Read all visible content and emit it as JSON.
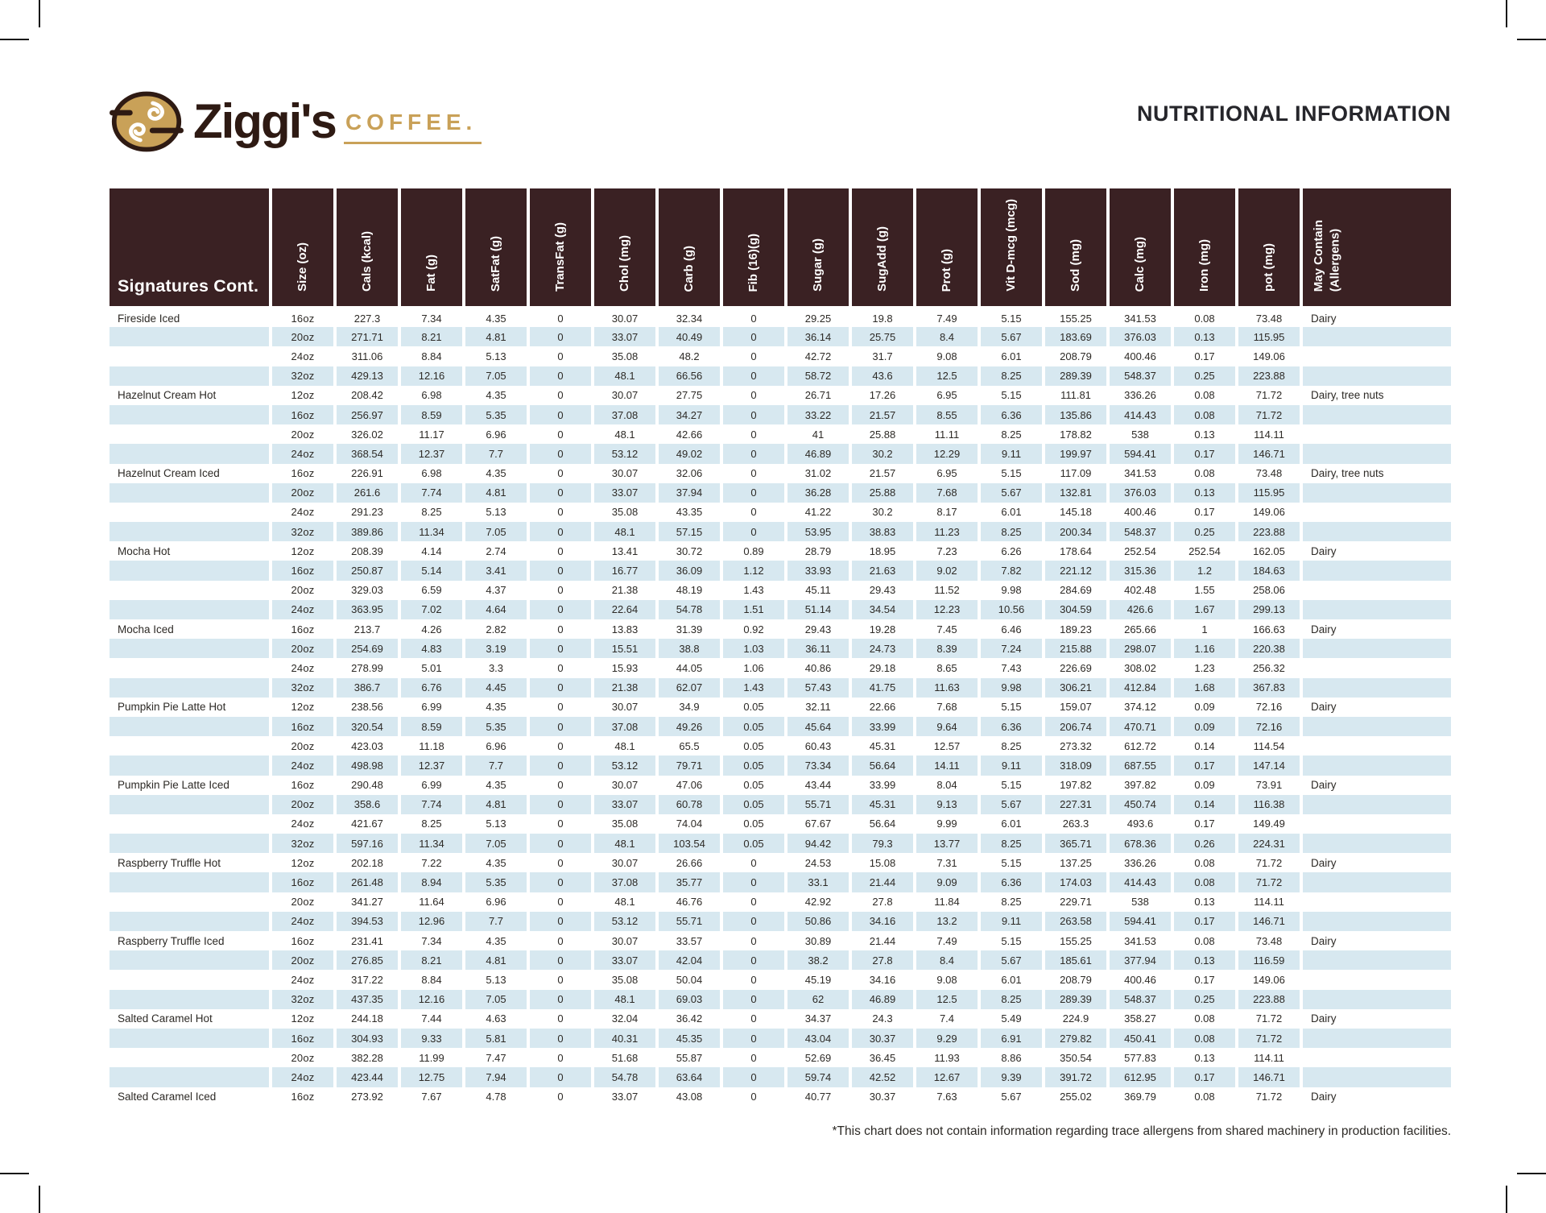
{
  "page": {
    "title": "NUTRITIONAL INFORMATION",
    "footnote": "*This chart does not contain information regarding trace allergens from shared machinery in production facilities."
  },
  "brand": {
    "name": "Ziggi's",
    "word2": "COFFEE.",
    "gold": "#c9a158",
    "brown": "#2e1a13"
  },
  "table": {
    "corner_header": "Signatures Cont.",
    "header_bg": "#3a2123",
    "stripe_color": "#d7e8f0",
    "columns": [
      "Size (oz)",
      "Cals (kcal)",
      "Fat (g)",
      "SatFat (g)",
      "TransFat (g)",
      "Chol (mg)",
      "Carb (g)",
      "Fib (16)(g)",
      "Sugar (g)",
      "SugAdd (g)",
      "Prot (g)",
      "Vit D-mcg (mcg)",
      "Sod (mg)",
      "Calc (mg)",
      "Iron (mg)",
      "pot (mg)"
    ],
    "allergen_header": "May Contain\n(Allergens)",
    "rows": [
      {
        "name": "Fireside Iced",
        "size": "16oz",
        "values": [
          "227.3",
          "7.34",
          "4.35",
          "0",
          "30.07",
          "32.34",
          "0",
          "29.25",
          "19.8",
          "7.49",
          "5.15",
          "155.25",
          "341.53",
          "0.08",
          "73.48"
        ],
        "allergens": "Dairy"
      },
      {
        "name": "",
        "size": "20oz",
        "values": [
          "271.71",
          "8.21",
          "4.81",
          "0",
          "33.07",
          "40.49",
          "0",
          "36.14",
          "25.75",
          "8.4",
          "5.67",
          "183.69",
          "376.03",
          "0.13",
          "115.95"
        ],
        "allergens": ""
      },
      {
        "name": "",
        "size": "24oz",
        "values": [
          "311.06",
          "8.84",
          "5.13",
          "0",
          "35.08",
          "48.2",
          "0",
          "42.72",
          "31.7",
          "9.08",
          "6.01",
          "208.79",
          "400.46",
          "0.17",
          "149.06"
        ],
        "allergens": ""
      },
      {
        "name": "",
        "size": "32oz",
        "values": [
          "429.13",
          "12.16",
          "7.05",
          "0",
          "48.1",
          "66.56",
          "0",
          "58.72",
          "43.6",
          "12.5",
          "8.25",
          "289.39",
          "548.37",
          "0.25",
          "223.88"
        ],
        "allergens": ""
      },
      {
        "name": "Hazelnut Cream Hot",
        "size": "12oz",
        "values": [
          "208.42",
          "6.98",
          "4.35",
          "0",
          "30.07",
          "27.75",
          "0",
          "26.71",
          "17.26",
          "6.95",
          "5.15",
          "111.81",
          "336.26",
          "0.08",
          "71.72"
        ],
        "allergens": "Dairy, tree nuts"
      },
      {
        "name": "",
        "size": "16oz",
        "values": [
          "256.97",
          "8.59",
          "5.35",
          "0",
          "37.08",
          "34.27",
          "0",
          "33.22",
          "21.57",
          "8.55",
          "6.36",
          "135.86",
          "414.43",
          "0.08",
          "71.72"
        ],
        "allergens": ""
      },
      {
        "name": "",
        "size": "20oz",
        "values": [
          "326.02",
          "11.17",
          "6.96",
          "0",
          "48.1",
          "42.66",
          "0",
          "41",
          "25.88",
          "11.11",
          "8.25",
          "178.82",
          "538",
          "0.13",
          "114.11"
        ],
        "allergens": ""
      },
      {
        "name": "",
        "size": "24oz",
        "values": [
          "368.54",
          "12.37",
          "7.7",
          "0",
          "53.12",
          "49.02",
          "0",
          "46.89",
          "30.2",
          "12.29",
          "9.11",
          "199.97",
          "594.41",
          "0.17",
          "146.71"
        ],
        "allergens": ""
      },
      {
        "name": "Hazelnut Cream Iced",
        "size": "16oz",
        "values": [
          "226.91",
          "6.98",
          "4.35",
          "0",
          "30.07",
          "32.06",
          "0",
          "31.02",
          "21.57",
          "6.95",
          "5.15",
          "117.09",
          "341.53",
          "0.08",
          "73.48"
        ],
        "allergens": "Dairy, tree nuts"
      },
      {
        "name": "",
        "size": "20oz",
        "values": [
          "261.6",
          "7.74",
          "4.81",
          "0",
          "33.07",
          "37.94",
          "0",
          "36.28",
          "25.88",
          "7.68",
          "5.67",
          "132.81",
          "376.03",
          "0.13",
          "115.95"
        ],
        "allergens": ""
      },
      {
        "name": "",
        "size": "24oz",
        "values": [
          "291.23",
          "8.25",
          "5.13",
          "0",
          "35.08",
          "43.35",
          "0",
          "41.22",
          "30.2",
          "8.17",
          "6.01",
          "145.18",
          "400.46",
          "0.17",
          "149.06"
        ],
        "allergens": ""
      },
      {
        "name": "",
        "size": "32oz",
        "values": [
          "389.86",
          "11.34",
          "7.05",
          "0",
          "48.1",
          "57.15",
          "0",
          "53.95",
          "38.83",
          "11.23",
          "8.25",
          "200.34",
          "548.37",
          "0.25",
          "223.88"
        ],
        "allergens": ""
      },
      {
        "name": "Mocha Hot",
        "size": "12oz",
        "values": [
          "208.39",
          "4.14",
          "2.74",
          "0",
          "13.41",
          "30.72",
          "0.89",
          "28.79",
          "18.95",
          "7.23",
          "6.26",
          "178.64",
          "252.54",
          "252.54",
          "162.05"
        ],
        "allergens": "Dairy"
      },
      {
        "name": "",
        "size": "16oz",
        "values": [
          "250.87",
          "5.14",
          "3.41",
          "0",
          "16.77",
          "36.09",
          "1.12",
          "33.93",
          "21.63",
          "9.02",
          "7.82",
          "221.12",
          "315.36",
          "1.2",
          "184.63"
        ],
        "allergens": ""
      },
      {
        "name": "",
        "size": "20oz",
        "values": [
          "329.03",
          "6.59",
          "4.37",
          "0",
          "21.38",
          "48.19",
          "1.43",
          "45.11",
          "29.43",
          "11.52",
          "9.98",
          "284.69",
          "402.48",
          "1.55",
          "258.06"
        ],
        "allergens": ""
      },
      {
        "name": "",
        "size": "24oz",
        "values": [
          "363.95",
          "7.02",
          "4.64",
          "0",
          "22.64",
          "54.78",
          "1.51",
          "51.14",
          "34.54",
          "12.23",
          "10.56",
          "304.59",
          "426.6",
          "1.67",
          "299.13"
        ],
        "allergens": ""
      },
      {
        "name": "Mocha Iced",
        "size": "16oz",
        "values": [
          "213.7",
          "4.26",
          "2.82",
          "0",
          "13.83",
          "31.39",
          "0.92",
          "29.43",
          "19.28",
          "7.45",
          "6.46",
          "189.23",
          "265.66",
          "1",
          "166.63"
        ],
        "allergens": "Dairy"
      },
      {
        "name": "",
        "size": "20oz",
        "values": [
          "254.69",
          "4.83",
          "3.19",
          "0",
          "15.51",
          "38.8",
          "1.03",
          "36.11",
          "24.73",
          "8.39",
          "7.24",
          "215.88",
          "298.07",
          "1.16",
          "220.38"
        ],
        "allergens": ""
      },
      {
        "name": "",
        "size": "24oz",
        "values": [
          "278.99",
          "5.01",
          "3.3",
          "0",
          "15.93",
          "44.05",
          "1.06",
          "40.86",
          "29.18",
          "8.65",
          "7.43",
          "226.69",
          "308.02",
          "1.23",
          "256.32"
        ],
        "allergens": ""
      },
      {
        "name": "",
        "size": "32oz",
        "values": [
          "386.7",
          "6.76",
          "4.45",
          "0",
          "21.38",
          "62.07",
          "1.43",
          "57.43",
          "41.75",
          "11.63",
          "9.98",
          "306.21",
          "412.84",
          "1.68",
          "367.83"
        ],
        "allergens": ""
      },
      {
        "name": "Pumpkin Pie Latte Hot",
        "size": "12oz",
        "values": [
          "238.56",
          "6.99",
          "4.35",
          "0",
          "30.07",
          "34.9",
          "0.05",
          "32.11",
          "22.66",
          "7.68",
          "5.15",
          "159.07",
          "374.12",
          "0.09",
          "72.16"
        ],
        "allergens": "Dairy"
      },
      {
        "name": "",
        "size": "16oz",
        "values": [
          "320.54",
          "8.59",
          "5.35",
          "0",
          "37.08",
          "49.26",
          "0.05",
          "45.64",
          "33.99",
          "9.64",
          "6.36",
          "206.74",
          "470.71",
          "0.09",
          "72.16"
        ],
        "allergens": ""
      },
      {
        "name": "",
        "size": "20oz",
        "values": [
          "423.03",
          "11.18",
          "6.96",
          "0",
          "48.1",
          "65.5",
          "0.05",
          "60.43",
          "45.31",
          "12.57",
          "8.25",
          "273.32",
          "612.72",
          "0.14",
          "114.54"
        ],
        "allergens": ""
      },
      {
        "name": "",
        "size": "24oz",
        "values": [
          "498.98",
          "12.37",
          "7.7",
          "0",
          "53.12",
          "79.71",
          "0.05",
          "73.34",
          "56.64",
          "14.11",
          "9.11",
          "318.09",
          "687.55",
          "0.17",
          "147.14"
        ],
        "allergens": ""
      },
      {
        "name": "Pumpkin Pie Latte Iced",
        "size": "16oz",
        "values": [
          "290.48",
          "6.99",
          "4.35",
          "0",
          "30.07",
          "47.06",
          "0.05",
          "43.44",
          "33.99",
          "8.04",
          "5.15",
          "197.82",
          "397.82",
          "0.09",
          "73.91"
        ],
        "allergens": "Dairy"
      },
      {
        "name": "",
        "size": "20oz",
        "values": [
          "358.6",
          "7.74",
          "4.81",
          "0",
          "33.07",
          "60.78",
          "0.05",
          "55.71",
          "45.31",
          "9.13",
          "5.67",
          "227.31",
          "450.74",
          "0.14",
          "116.38"
        ],
        "allergens": ""
      },
      {
        "name": "",
        "size": "24oz",
        "values": [
          "421.67",
          "8.25",
          "5.13",
          "0",
          "35.08",
          "74.04",
          "0.05",
          "67.67",
          "56.64",
          "9.99",
          "6.01",
          "263.3",
          "493.6",
          "0.17",
          "149.49"
        ],
        "allergens": ""
      },
      {
        "name": "",
        "size": "32oz",
        "values": [
          "597.16",
          "11.34",
          "7.05",
          "0",
          "48.1",
          "103.54",
          "0.05",
          "94.42",
          "79.3",
          "13.77",
          "8.25",
          "365.71",
          "678.36",
          "0.26",
          "224.31"
        ],
        "allergens": ""
      },
      {
        "name": "Raspberry Truffle Hot",
        "size": "12oz",
        "values": [
          "202.18",
          "7.22",
          "4.35",
          "0",
          "30.07",
          "26.66",
          "0",
          "24.53",
          "15.08",
          "7.31",
          "5.15",
          "137.25",
          "336.26",
          "0.08",
          "71.72"
        ],
        "allergens": "Dairy"
      },
      {
        "name": "",
        "size": "16oz",
        "values": [
          "261.48",
          "8.94",
          "5.35",
          "0",
          "37.08",
          "35.77",
          "0",
          "33.1",
          "21.44",
          "9.09",
          "6.36",
          "174.03",
          "414.43",
          "0.08",
          "71.72"
        ],
        "allergens": ""
      },
      {
        "name": "",
        "size": "20oz",
        "values": [
          "341.27",
          "11.64",
          "6.96",
          "0",
          "48.1",
          "46.76",
          "0",
          "42.92",
          "27.8",
          "11.84",
          "8.25",
          "229.71",
          "538",
          "0.13",
          "114.11"
        ],
        "allergens": ""
      },
      {
        "name": "",
        "size": "24oz",
        "values": [
          "394.53",
          "12.96",
          "7.7",
          "0",
          "53.12",
          "55.71",
          "0",
          "50.86",
          "34.16",
          "13.2",
          "9.11",
          "263.58",
          "594.41",
          "0.17",
          "146.71"
        ],
        "allergens": ""
      },
      {
        "name": "Raspberry Truffle Iced",
        "size": "16oz",
        "values": [
          "231.41",
          "7.34",
          "4.35",
          "0",
          "30.07",
          "33.57",
          "0",
          "30.89",
          "21.44",
          "7.49",
          "5.15",
          "155.25",
          "341.53",
          "0.08",
          "73.48"
        ],
        "allergens": "Dairy"
      },
      {
        "name": "",
        "size": "20oz",
        "values": [
          "276.85",
          "8.21",
          "4.81",
          "0",
          "33.07",
          "42.04",
          "0",
          "38.2",
          "27.8",
          "8.4",
          "5.67",
          "185.61",
          "377.94",
          "0.13",
          "116.59"
        ],
        "allergens": ""
      },
      {
        "name": "",
        "size": "24oz",
        "values": [
          "317.22",
          "8.84",
          "5.13",
          "0",
          "35.08",
          "50.04",
          "0",
          "45.19",
          "34.16",
          "9.08",
          "6.01",
          "208.79",
          "400.46",
          "0.17",
          "149.06"
        ],
        "allergens": ""
      },
      {
        "name": "",
        "size": "32oz",
        "values": [
          "437.35",
          "12.16",
          "7.05",
          "0",
          "48.1",
          "69.03",
          "0",
          "62",
          "46.89",
          "12.5",
          "8.25",
          "289.39",
          "548.37",
          "0.25",
          "223.88"
        ],
        "allergens": ""
      },
      {
        "name": "Salted Caramel Hot",
        "size": "12oz",
        "values": [
          "244.18",
          "7.44",
          "4.63",
          "0",
          "32.04",
          "36.42",
          "0",
          "34.37",
          "24.3",
          "7.4",
          "5.49",
          "224.9",
          "358.27",
          "0.08",
          "71.72"
        ],
        "allergens": "Dairy"
      },
      {
        "name": "",
        "size": "16oz",
        "values": [
          "304.93",
          "9.33",
          "5.81",
          "0",
          "40.31",
          "45.35",
          "0",
          "43.04",
          "30.37",
          "9.29",
          "6.91",
          "279.82",
          "450.41",
          "0.08",
          "71.72"
        ],
        "allergens": ""
      },
      {
        "name": "",
        "size": "20oz",
        "values": [
          "382.28",
          "11.99",
          "7.47",
          "0",
          "51.68",
          "55.87",
          "0",
          "52.69",
          "36.45",
          "11.93",
          "8.86",
          "350.54",
          "577.83",
          "0.13",
          "114.11"
        ],
        "allergens": ""
      },
      {
        "name": "",
        "size": "24oz",
        "values": [
          "423.44",
          "12.75",
          "7.94",
          "0",
          "54.78",
          "63.64",
          "0",
          "59.74",
          "42.52",
          "12.67",
          "9.39",
          "391.72",
          "612.95",
          "0.17",
          "146.71"
        ],
        "allergens": ""
      },
      {
        "name": "Salted Caramel Iced",
        "size": "16oz",
        "values": [
          "273.92",
          "7.67",
          "4.78",
          "0",
          "33.07",
          "43.08",
          "0",
          "40.77",
          "30.37",
          "7.63",
          "5.67",
          "255.02",
          "369.79",
          "0.08",
          "71.72"
        ],
        "allergens": "Dairy"
      }
    ]
  }
}
